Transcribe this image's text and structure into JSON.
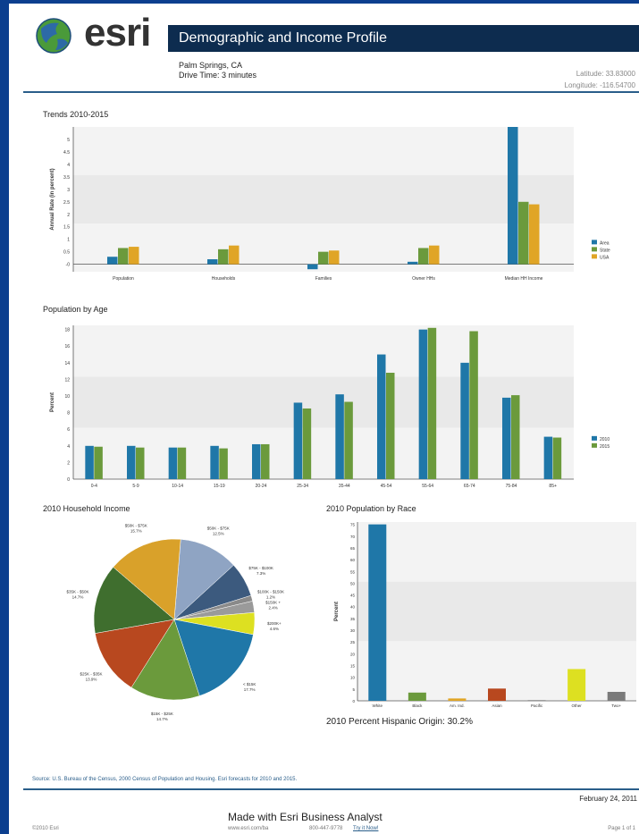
{
  "header": {
    "logo_text": "esri",
    "title": "Demographic and Income Profile",
    "location": "Palm Springs, CA",
    "drive_time": "Drive Time: 3 minutes",
    "latitude": "Latitude: 33.83000",
    "longitude": "Longitude: -116.54700"
  },
  "colors": {
    "blue": "#1f77a8",
    "green": "#6b9a3c",
    "gold": "#e0a526",
    "title_bar": "#0d2c4f",
    "border": "#0c3f8f"
  },
  "chart_data": [
    {
      "type": "bar",
      "title": "Trends 2010-2015",
      "ylabel": "Annual Rate (in percent)",
      "xlabel": "",
      "categories": [
        "Population",
        "Households",
        "Families",
        "Owner HHs",
        "Median HH Income"
      ],
      "series": [
        {
          "name": "Area",
          "values": [
            0.3,
            0.2,
            -0.2,
            0.1,
            5.5
          ]
        },
        {
          "name": "State",
          "values": [
            0.65,
            0.6,
            0.5,
            0.65,
            2.5
          ]
        },
        {
          "name": "USA",
          "values": [
            0.7,
            0.75,
            0.55,
            0.75,
            2.4
          ]
        }
      ],
      "ylim": [
        -0.3,
        5.5
      ],
      "yticks": [
        "-0",
        "0.5",
        "1",
        "1.5",
        "2",
        "2.5",
        "3",
        "3.5",
        "4",
        "4.5",
        "5"
      ],
      "legend": "right"
    },
    {
      "type": "bar",
      "title": "Population by Age",
      "ylabel": "Percent",
      "xlabel": "",
      "categories": [
        "0-4",
        "5-9",
        "10-14",
        "15-19",
        "20-24",
        "25-34",
        "35-44",
        "45-54",
        "55-64",
        "65-74",
        "75-84",
        "85+"
      ],
      "series": [
        {
          "name": "2010",
          "values": [
            4.0,
            4.0,
            3.8,
            4.0,
            4.2,
            9.2,
            10.2,
            15.0,
            18.0,
            14.0,
            9.8,
            5.1
          ]
        },
        {
          "name": "2015",
          "values": [
            3.9,
            3.8,
            3.8,
            3.7,
            4.2,
            8.5,
            9.3,
            12.8,
            18.2,
            17.8,
            10.1,
            5.0
          ]
        }
      ],
      "ylim": [
        0,
        18.5
      ],
      "yticks": [
        "0",
        "2",
        "4",
        "6",
        "8",
        "10",
        "12",
        "14",
        "16",
        "18"
      ],
      "legend": "right"
    },
    {
      "type": "pie",
      "title": "2010 Household Income",
      "slices": [
        {
          "label": "$50K - $75K",
          "pct": "12.5%",
          "value": 12.5,
          "color": "#8fa4c3"
        },
        {
          "label": "$75K - $100K",
          "pct": "7.3%",
          "value": 7.3,
          "color": "#3c5a7e"
        },
        {
          "label": "$100K - $150K",
          "pct": "1.2%",
          "value": 1.2,
          "color": "#8a8a8a"
        },
        {
          "label": "$150K +",
          "pct": "2.4%",
          "value": 2.4,
          "color": "#9a9a9a"
        },
        {
          "label": "$200K+",
          "pct": "4.6%",
          "value": 4.6,
          "color": "#dde021"
        },
        {
          "label": "< $15K",
          "pct": "17.7%",
          "value": 17.7,
          "color": "#1f77a8"
        },
        {
          "label": "$15K - $25K",
          "pct": "14.7%",
          "value": 14.7,
          "color": "#6b9a3c"
        },
        {
          "label": "$25K - $35K",
          "pct": "13.9%",
          "value": 13.9,
          "color": "#b8481f"
        },
        {
          "label": "$35K - $50K",
          "pct": "14.7%",
          "value": 14.7,
          "color": "#3f6e2e"
        },
        {
          "label": "$50K - $75K",
          "pct": "15.7%",
          "value": 15.7,
          "color": "#d9a12a"
        }
      ]
    },
    {
      "type": "bar",
      "title": "2010 Population by Race",
      "ylabel": "Percent",
      "xlabel": "",
      "categories": [
        "White",
        "Black",
        "Am. Ind.",
        "Asian",
        "Pacific",
        "Other",
        "Two+"
      ],
      "values": [
        75,
        3.5,
        1.0,
        5.2,
        0.3,
        13.5,
        3.8
      ],
      "colors": [
        "#1f77a8",
        "#6b9a3c",
        "#e0a526",
        "#b8481f",
        "#888888",
        "#dde021",
        "#7a7a7a"
      ],
      "ylim": [
        0,
        76
      ],
      "yticks": [
        "0",
        "5",
        "10",
        "15",
        "20",
        "25",
        "30",
        "35",
        "40",
        "45",
        "50",
        "55",
        "60",
        "65",
        "70",
        "75"
      ]
    }
  ],
  "hispanic_note": "2010 Percent Hispanic Origin: 30.2%",
  "source": "Source: U.S. Bureau of the Census, 2000 Census of Population and Housing. Esri forecasts for 2010 and 2015.",
  "footer": {
    "date": "February 24, 2011",
    "made_with": "Made with Esri Business Analyst",
    "left_small": "©2010 Esri",
    "center_small": "www.esri.com/ba",
    "center_small2": "800-447-9778",
    "link_small": "Try it Now!",
    "page": "Page 1 of 1"
  }
}
